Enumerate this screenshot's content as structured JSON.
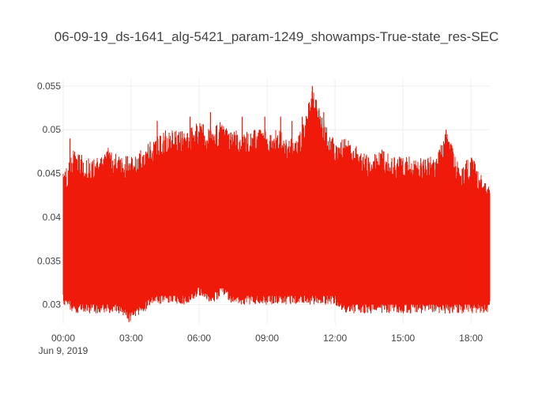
{
  "chart_data": {
    "type": "line",
    "title": "06-09-19_ds-1641_alg-5421_param-1249_showamps-True-state_res-SEC",
    "xlabel": "",
    "ylabel": "",
    "x_range": [
      "2019-06-09 00:00",
      "2019-06-09 18:50"
    ],
    "ylim": [
      0.0278,
      0.0558
    ],
    "grid": true,
    "legend": "none",
    "line_color": "#ef1a0a",
    "y_ticks": [
      "0.03",
      "0.035",
      "0.04",
      "0.045",
      "0.05",
      "0.055"
    ],
    "y_tick_values": [
      0.03,
      0.035,
      0.04,
      0.045,
      0.05,
      0.055
    ],
    "x_ticks": [
      "00:00",
      "03:00",
      "06:00",
      "09:00",
      "12:00",
      "15:00",
      "18:00"
    ],
    "x_tick_hours": [
      0,
      3,
      6,
      9,
      12,
      15,
      18
    ],
    "x_date_label": "Jun 9, 2019",
    "series": [
      {
        "x_hour_start": 0,
        "x_hour_end": 18.83,
        "envelope": [
          {
            "hour": 0.0,
            "max": 0.045,
            "min": 0.03
          },
          {
            "hour": 0.5,
            "max": 0.048,
            "min": 0.029
          },
          {
            "hour": 1.0,
            "max": 0.047,
            "min": 0.029
          },
          {
            "hour": 1.5,
            "max": 0.047,
            "min": 0.029
          },
          {
            "hour": 2.0,
            "max": 0.048,
            "min": 0.029
          },
          {
            "hour": 2.5,
            "max": 0.047,
            "min": 0.029
          },
          {
            "hour": 2.9,
            "max": 0.047,
            "min": 0.028
          },
          {
            "hour": 3.5,
            "max": 0.048,
            "min": 0.029
          },
          {
            "hour": 4.0,
            "max": 0.049,
            "min": 0.03
          },
          {
            "hour": 4.5,
            "max": 0.05,
            "min": 0.03
          },
          {
            "hour": 5.0,
            "max": 0.05,
            "min": 0.03
          },
          {
            "hour": 5.5,
            "max": 0.05,
            "min": 0.03
          },
          {
            "hour": 6.0,
            "max": 0.051,
            "min": 0.031
          },
          {
            "hour": 6.5,
            "max": 0.05,
            "min": 0.03
          },
          {
            "hour": 7.0,
            "max": 0.051,
            "min": 0.031
          },
          {
            "hour": 7.5,
            "max": 0.05,
            "min": 0.03
          },
          {
            "hour": 8.0,
            "max": 0.05,
            "min": 0.03
          },
          {
            "hour": 8.5,
            "max": 0.05,
            "min": 0.03
          },
          {
            "hour": 9.0,
            "max": 0.05,
            "min": 0.03
          },
          {
            "hour": 9.5,
            "max": 0.05,
            "min": 0.03
          },
          {
            "hour": 10.0,
            "max": 0.049,
            "min": 0.03
          },
          {
            "hour": 10.5,
            "max": 0.05,
            "min": 0.03
          },
          {
            "hour": 11.0,
            "max": 0.055,
            "min": 0.03
          },
          {
            "hour": 11.5,
            "max": 0.051,
            "min": 0.03
          },
          {
            "hour": 12.0,
            "max": 0.049,
            "min": 0.03
          },
          {
            "hour": 12.5,
            "max": 0.049,
            "min": 0.029
          },
          {
            "hour": 13.0,
            "max": 0.048,
            "min": 0.029
          },
          {
            "hour": 13.5,
            "max": 0.047,
            "min": 0.029
          },
          {
            "hour": 14.0,
            "max": 0.048,
            "min": 0.029
          },
          {
            "hour": 14.5,
            "max": 0.047,
            "min": 0.029
          },
          {
            "hour": 15.0,
            "max": 0.047,
            "min": 0.029
          },
          {
            "hour": 15.5,
            "max": 0.047,
            "min": 0.029
          },
          {
            "hour": 16.0,
            "max": 0.047,
            "min": 0.029
          },
          {
            "hour": 16.5,
            "max": 0.047,
            "min": 0.029
          },
          {
            "hour": 16.9,
            "max": 0.05,
            "min": 0.029
          },
          {
            "hour": 17.5,
            "max": 0.046,
            "min": 0.029
          },
          {
            "hour": 18.0,
            "max": 0.047,
            "min": 0.029
          },
          {
            "hour": 18.5,
            "max": 0.045,
            "min": 0.029
          },
          {
            "hour": 18.83,
            "max": 0.044,
            "min": 0.029
          }
        ]
      }
    ]
  }
}
